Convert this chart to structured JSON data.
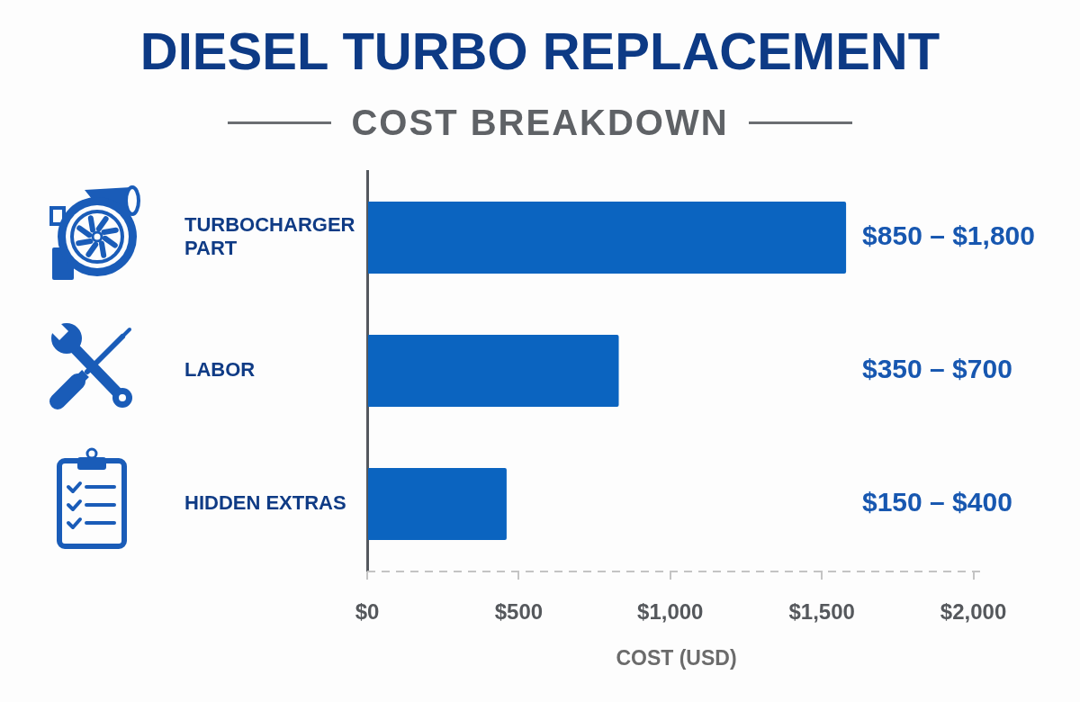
{
  "chart_data": {
    "type": "bar",
    "orientation": "horizontal",
    "title": "DIESEL TURBO REPLACEMENT",
    "subtitle": "COST BREAKDOWN",
    "xlabel": "COST (USD)",
    "categories": [
      "TURBOCHARGER PART",
      "LABOR",
      "HIDDEN EXTRAS"
    ],
    "values": [
      1580,
      830,
      460
    ],
    "color": "#0b64c0",
    "annotations": [
      "$850 – $1,800",
      "$350 – $700",
      "$150 – $400"
    ],
    "xlim": [
      0,
      2040
    ],
    "xticks": [
      {
        "value": 0,
        "label": "$0"
      },
      {
        "value": 500,
        "label": "$500"
      },
      {
        "value": 1000,
        "label": "$1,000"
      },
      {
        "value": 1500,
        "label": "$1,500"
      },
      {
        "value": 2000,
        "label": "$2,000"
      }
    ]
  }
}
